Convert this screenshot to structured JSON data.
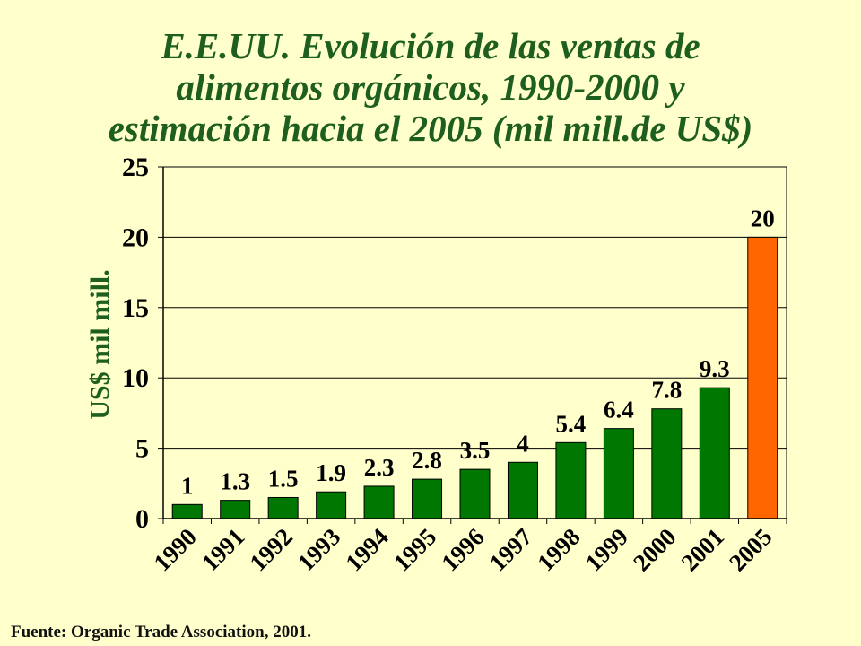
{
  "title_lines": [
    "E.E.UU. Evolución de las ventas de",
    "alimentos orgánicos, 1990-2000 y",
    "estimación hacia el 2005 (mil mill.de US$)"
  ],
  "source": "Fuente: Organic Trade Association, 2001.",
  "colors": {
    "background": "#FFFFCC",
    "title": "#1E5E1E",
    "bar": "#007700",
    "bar_estimate": "#FF6600"
  },
  "chart_data": {
    "type": "bar",
    "title": "E.E.UU. Evolución de las ventas de alimentos orgánicos, 1990-2000 y estimación hacia el 2005 (mil mill.de US$)",
    "xlabel": "",
    "ylabel": "US$ mil mill.",
    "ylim": [
      0,
      25
    ],
    "yticks": [
      0,
      5,
      10,
      15,
      20,
      25
    ],
    "grid": true,
    "legend": "none",
    "categories": [
      "1990",
      "1991",
      "1992",
      "1993",
      "1994",
      "1995",
      "1996",
      "1997",
      "1998",
      "1999",
      "2000",
      "2001",
      "2005"
    ],
    "values": [
      1,
      1.3,
      1.5,
      1.9,
      2.3,
      2.8,
      3.5,
      4,
      5.4,
      6.4,
      7.8,
      9.3,
      20
    ],
    "value_labels": [
      "1",
      "1.3",
      "1.5",
      "1.9",
      "2.3",
      "2.8",
      "3.5",
      "4",
      "5.4",
      "6.4",
      "7.8",
      "9.3",
      "20"
    ],
    "highlight_category": "2005"
  }
}
